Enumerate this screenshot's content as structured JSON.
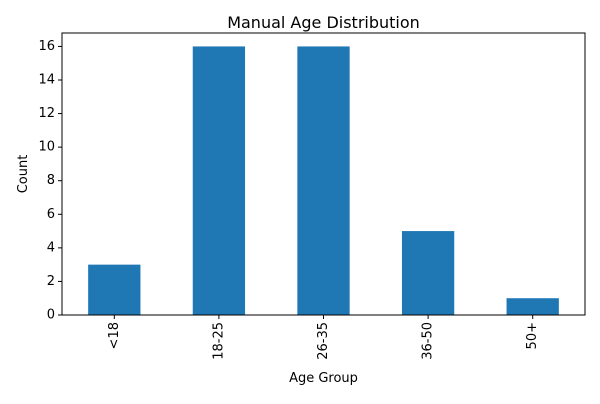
{
  "chart_data": {
    "type": "bar",
    "title": "Manual Age Distribution",
    "xlabel": "Age Group",
    "ylabel": "Count",
    "categories": [
      "<18",
      "18-25",
      "26-35",
      "36-50",
      "50+"
    ],
    "values": [
      3,
      16,
      16,
      5,
      1
    ],
    "ylim": [
      0,
      16.8
    ],
    "yticks": [
      0,
      2,
      4,
      6,
      8,
      10,
      12,
      14,
      16
    ],
    "xtick_rotation": "vertical",
    "grid": false,
    "legend": "none",
    "bar_color": "#1f77b4"
  }
}
